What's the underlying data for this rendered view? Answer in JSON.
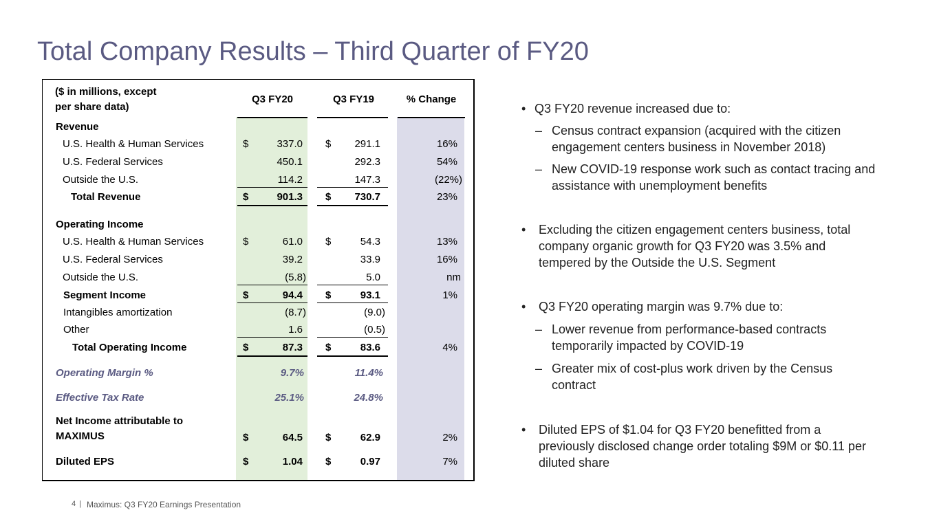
{
  "slide": {
    "title": "Total Company Results – Third Quarter of FY20",
    "page_number": "4",
    "footer_separator": "|",
    "footer_text": "Maximus: Q3 FY20 Earnings Presentation"
  },
  "colors": {
    "title": "#5a5a82",
    "fy20_shade": "#e2efda",
    "change_shade": "#dcdcea",
    "highlight_text": "#5a5a82"
  },
  "table": {
    "unit_label_line1": "($ in millions, except",
    "unit_label_line2": "per share data)",
    "col_headers": [
      "Q3 FY20",
      "Q3 FY19",
      "% Change"
    ],
    "currency": "$",
    "revenue": {
      "section": "Revenue",
      "rows": [
        {
          "label": "U.S. Health & Human Services",
          "fy20": "337.0",
          "fy19": "291.1",
          "change": "16%"
        },
        {
          "label": "U.S. Federal Services",
          "fy20": "450.1",
          "fy19": "292.3",
          "change": "54%"
        },
        {
          "label": "Outside the U.S.",
          "fy20": "114.2",
          "fy19": "147.3",
          "change": "(22%)"
        }
      ],
      "total": {
        "label": "Total Revenue",
        "fy20": "901.3",
        "fy19": "730.7",
        "change": "23%"
      }
    },
    "operating_income": {
      "section": "Operating Income",
      "rows": [
        {
          "label": "U.S. Health & Human Services",
          "fy20": "61.0",
          "fy19": "54.3",
          "change": "13%"
        },
        {
          "label": "U.S. Federal Services",
          "fy20": "39.2",
          "fy19": "33.9",
          "change": "16%"
        },
        {
          "label": "Outside the U.S.",
          "fy20": "(5.8)",
          "fy19": "5.0",
          "change": "nm"
        }
      ],
      "segment": {
        "label": "Segment Income",
        "fy20": "94.4",
        "fy19": "93.1",
        "change": "1%"
      },
      "amortization": {
        "label": "Intangibles amortization",
        "fy20": "(8.7)",
        "fy19": "(9.0)"
      },
      "other": {
        "label": "Other",
        "fy20": "1.6",
        "fy19": "(0.5)"
      },
      "total": {
        "label": "Total Operating Income",
        "fy20": "87.3",
        "fy19": "83.6",
        "change": "4%"
      }
    },
    "operating_margin": {
      "label": "Operating Margin %",
      "fy20": "9.7%",
      "fy19": "11.4%"
    },
    "tax_rate": {
      "label": "Effective Tax Rate",
      "fy20": "25.1%",
      "fy19": "24.8%"
    },
    "net_income": {
      "label_line1": "Net Income attributable to",
      "label_line2": "MAXIMUS",
      "fy20": "64.5",
      "fy19": "62.9",
      "change": "2%"
    },
    "eps": {
      "label": "Diluted EPS",
      "fy20": "1.04",
      "fy19": "0.97",
      "change": "7%"
    }
  },
  "bullets": {
    "b1": {
      "text": "Q3 FY20 revenue increased due to:",
      "subs": [
        "Census contract expansion (acquired with the citizen engagement centers business in November 2018)",
        "New COVID-19 response work such as contact tracing and assistance with unemployment benefits"
      ]
    },
    "b2": {
      "text": "Excluding the citizen engagement centers business, total company organic growth for Q3 FY20 was 3.5% and tempered by the Outside the U.S. Segment"
    },
    "b3": {
      "text": "Q3 FY20 operating margin was 9.7% due to:",
      "subs": [
        "Lower revenue from performance-based contracts temporarily impacted by COVID-19",
        "Greater mix of cost-plus work driven by the Census contract"
      ]
    },
    "b4": {
      "text": "Diluted EPS of $1.04 for Q3 FY20 benefitted from a previously disclosed change order totaling $9M or $0.11 per diluted share"
    }
  },
  "markers": {
    "bullet": "•",
    "dash": "–"
  }
}
